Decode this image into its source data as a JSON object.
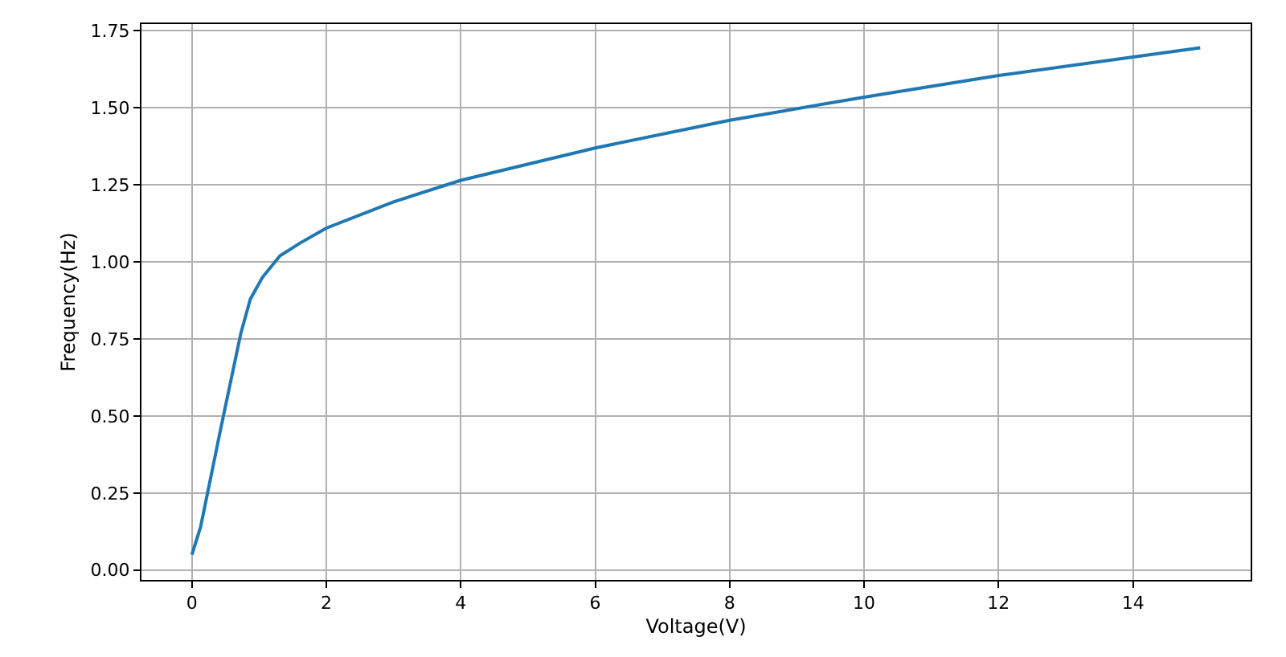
{
  "chart_data": {
    "type": "line",
    "xlabel": "Voltage(V)",
    "ylabel": "Frequency(Hz)",
    "x": [
      0,
      0.13,
      0.43,
      0.73,
      0.87,
      1.05,
      1.31,
      1.6,
      2,
      3,
      4,
      6,
      8,
      10,
      12,
      14,
      15
    ],
    "series": [
      {
        "color": "#1f77b4",
        "values": [
          0.05,
          0.14,
          0.46,
          0.77,
          0.88,
          0.95,
          1.02,
          1.06,
          1.11,
          1.195,
          1.265,
          1.37,
          1.46,
          1.535,
          1.605,
          1.665,
          1.695
        ]
      }
    ],
    "xlim": [
      -0.75,
      15.75
    ],
    "xticks": [
      0,
      2,
      4,
      6,
      8,
      10,
      12,
      14
    ],
    "ylim": [
      -0.032,
      1.772
    ],
    "yticks": [
      {
        "value": 0,
        "label": "0.00"
      },
      {
        "value": 0.25,
        "label": "0.25"
      },
      {
        "value": 0.5,
        "label": "0.50"
      },
      {
        "value": 0.75,
        "label": "0.75"
      },
      {
        "value": 1,
        "label": "1.00"
      },
      {
        "value": 1.25,
        "label": "1.25"
      },
      {
        "value": 1.5,
        "label": "1.50"
      },
      {
        "value": 1.75,
        "label": "1.75"
      }
    ],
    "grid": true,
    "marker": "none",
    "line_style": "solid"
  }
}
